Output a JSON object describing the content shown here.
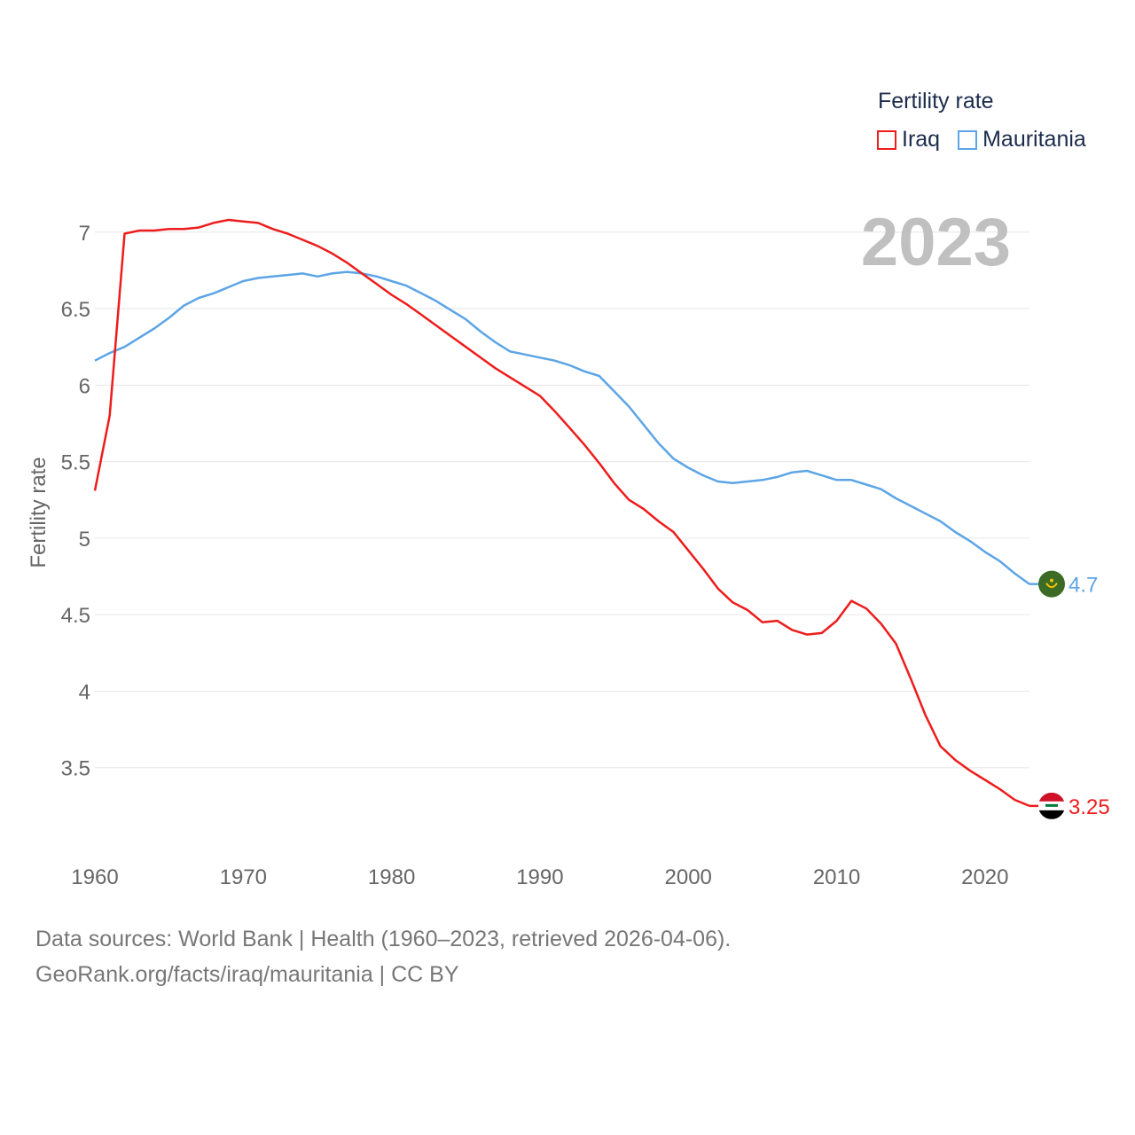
{
  "legend": {
    "title": "Fertility rate",
    "items": [
      {
        "label": "Iraq",
        "color": "#ee1c1c"
      },
      {
        "label": "Mauritania",
        "color": "#5ca5e6"
      }
    ]
  },
  "year_label": "2023",
  "footer": {
    "line1": "Data sources: World Bank | Health (1960–2023, retrieved 2026-04-06).",
    "line2": "GeoRank.org/facts/iraq/mauritania | CC BY"
  },
  "chart_data": {
    "type": "line",
    "title": "Fertility rate",
    "xlabel": "",
    "ylabel": "Fertility rate",
    "xlim": [
      1960,
      2023
    ],
    "ylim": [
      3.0,
      7.3
    ],
    "grid": true,
    "x_ticks": [
      1960,
      1970,
      1980,
      1990,
      2000,
      2010,
      2020
    ],
    "y_ticks": [
      3.5,
      4,
      4.5,
      5,
      5.5,
      6,
      6.5,
      7
    ],
    "x": [
      1960,
      1961,
      1962,
      1963,
      1964,
      1965,
      1966,
      1967,
      1968,
      1969,
      1970,
      1971,
      1972,
      1973,
      1974,
      1975,
      1976,
      1977,
      1978,
      1979,
      1980,
      1981,
      1982,
      1983,
      1984,
      1985,
      1986,
      1987,
      1988,
      1989,
      1990,
      1991,
      1992,
      1993,
      1994,
      1995,
      1996,
      1997,
      1998,
      1999,
      2000,
      2001,
      2002,
      2003,
      2004,
      2005,
      2006,
      2007,
      2008,
      2009,
      2010,
      2011,
      2012,
      2013,
      2014,
      2015,
      2016,
      2017,
      2018,
      2019,
      2020,
      2021,
      2022,
      2023
    ],
    "series": [
      {
        "name": "Iraq",
        "color": "#ee1c1c",
        "end_label": "3.25",
        "flag": "Iraq flag",
        "values": [
          5.31,
          5.8,
          6.99,
          7.01,
          7.01,
          7.02,
          7.02,
          7.03,
          7.06,
          7.08,
          7.07,
          7.06,
          7.02,
          6.99,
          6.95,
          6.91,
          6.86,
          6.8,
          6.73,
          6.66,
          6.59,
          6.53,
          6.46,
          6.39,
          6.32,
          6.25,
          6.18,
          6.11,
          6.05,
          5.99,
          5.93,
          5.83,
          5.72,
          5.61,
          5.49,
          5.36,
          5.25,
          5.19,
          5.11,
          5.04,
          4.92,
          4.8,
          4.67,
          4.58,
          4.53,
          4.45,
          4.46,
          4.4,
          4.37,
          4.38,
          4.46,
          4.59,
          4.54,
          4.44,
          4.31,
          4.08,
          3.84,
          3.64,
          3.55,
          3.48,
          3.42,
          3.36,
          3.29,
          3.25
        ]
      },
      {
        "name": "Mauritania",
        "color": "#5ca5e6",
        "end_label": "4.7",
        "flag": "Mauritania flag",
        "values": [
          6.16,
          6.21,
          6.25,
          6.31,
          6.37,
          6.44,
          6.52,
          6.57,
          6.6,
          6.64,
          6.68,
          6.7,
          6.71,
          6.72,
          6.73,
          6.71,
          6.73,
          6.74,
          6.73,
          6.71,
          6.68,
          6.65,
          6.6,
          6.55,
          6.49,
          6.43,
          6.35,
          6.28,
          6.22,
          6.2,
          6.18,
          6.16,
          6.13,
          6.09,
          6.06,
          5.96,
          5.86,
          5.74,
          5.62,
          5.52,
          5.46,
          5.41,
          5.37,
          5.36,
          5.37,
          5.38,
          5.4,
          5.43,
          5.44,
          5.41,
          5.38,
          5.38,
          5.35,
          5.32,
          5.26,
          5.21,
          5.16,
          5.11,
          5.04,
          4.98,
          4.91,
          4.85,
          4.77,
          4.7
        ]
      }
    ]
  }
}
